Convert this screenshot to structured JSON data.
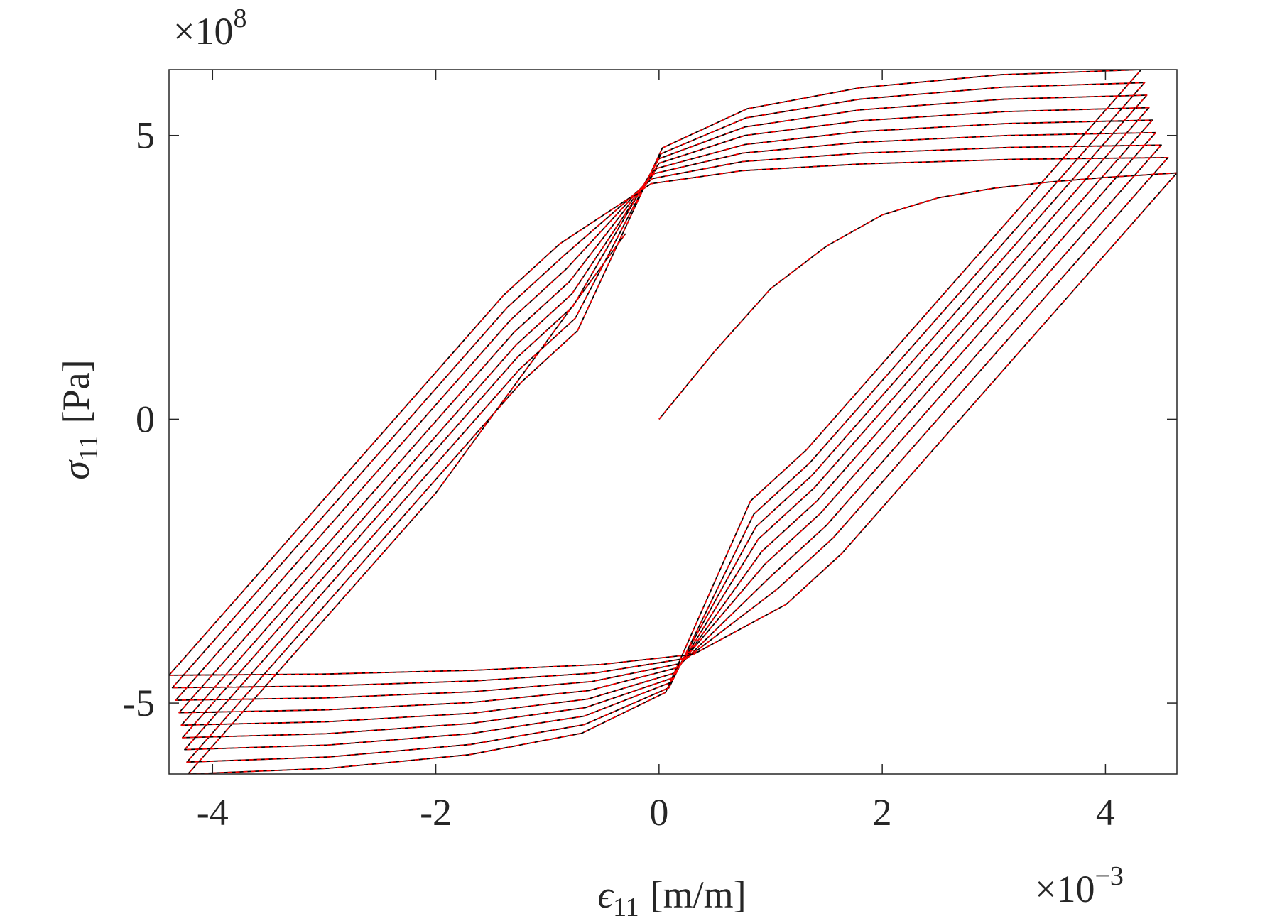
{
  "chart_data": {
    "type": "line",
    "xlabel": {
      "symbol": "ϵ",
      "subscript": "11",
      "unit": "[m/m]"
    },
    "ylabel": {
      "symbol": "σ",
      "subscript": "11",
      "unit": "[Pa]"
    },
    "x_multiplier": {
      "base": "×10",
      "exponent": "−3"
    },
    "y_multiplier": {
      "base": "×10",
      "exponent": "8"
    },
    "xlim": [
      -4.39,
      4.64
    ],
    "ylim": [
      -6.25,
      6.16
    ],
    "xticks": [
      -4,
      -2,
      0,
      2,
      4
    ],
    "yticks": [
      -5,
      0,
      5
    ],
    "grid": false,
    "series": [
      {
        "color": "#000000",
        "dash": "solid",
        "x": [
          0,
          0.5,
          1.0,
          1.5,
          2.0,
          2.5,
          3.0,
          3.5,
          4.0,
          4.64,
          1.64,
          1.14,
          0.31,
          -0.52,
          -1.63,
          -3.01,
          -4.39,
          -1.39,
          -0.89,
          -0.07,
          0.75,
          1.84,
          3.2,
          4.56,
          1.56,
          1.06,
          0.25,
          -0.57,
          -1.65,
          -3.01,
          -4.36,
          -1.36,
          -0.86,
          -0.06,
          0.75,
          1.82,
          3.16,
          4.5,
          1.5,
          1.0,
          0.2,
          -0.6,
          -1.67,
          -3.0,
          -4.33,
          -1.33,
          -0.83,
          -0.04,
          0.75,
          1.81,
          3.13,
          4.45,
          1.45,
          0.95,
          0.16,
          -0.63,
          -1.68,
          -2.99,
          -4.3,
          -1.3,
          -0.8,
          -0.02,
          0.77,
          1.81,
          3.12,
          4.42,
          1.42,
          0.92,
          0.14,
          -0.64,
          -1.68,
          -2.98,
          -4.28,
          -1.28,
          -0.78,
          0,
          0.77,
          1.81,
          3.1,
          4.39,
          1.39,
          0.89,
          0.12,
          -0.66,
          -1.69,
          -2.98,
          -4.27,
          -1.27,
          -0.77,
          0,
          0.77,
          1.8,
          3.09,
          4.37,
          1.37,
          0.87,
          0.1,
          -0.67,
          -1.69,
          -2.97,
          -4.25,
          -1.25,
          -0.75,
          0.02,
          0.78,
          1.8,
          3.08,
          4.35,
          1.35,
          0.85,
          0.09,
          -0.67,
          -1.69,
          -2.96,
          -4.23,
          -1.23,
          -0.73,
          0.03,
          0.79,
          1.8,
          3.06,
          4.32,
          1.32,
          0.82,
          0.06,
          -0.69,
          -1.7,
          -2.96,
          -4.22,
          -2.0,
          -0.3
        ],
        "values": [
          0,
          1.2,
          2.3,
          3.05,
          3.6,
          3.9,
          4.07,
          4.18,
          4.26,
          4.34,
          -2.36,
          -3.26,
          -4.14,
          -4.32,
          -4.42,
          -4.49,
          -4.51,
          2.19,
          3.09,
          4.15,
          4.38,
          4.5,
          4.58,
          4.61,
          -2.09,
          -2.99,
          -4.21,
          -4.47,
          -4.61,
          -4.7,
          -4.73,
          1.97,
          2.87,
          4.24,
          4.54,
          4.69,
          4.79,
          4.83,
          -1.87,
          -2.77,
          -4.3,
          -4.62,
          -4.8,
          -4.91,
          -4.95,
          1.75,
          2.65,
          4.33,
          4.69,
          4.88,
          5.0,
          5.05,
          -1.65,
          -2.55,
          -4.38,
          -4.78,
          -4.99,
          -5.12,
          -5.17,
          1.53,
          2.43,
          4.42,
          4.84,
          5.07,
          5.21,
          5.27,
          -1.43,
          -2.33,
          -4.47,
          -4.93,
          -5.18,
          -5.33,
          -5.39,
          1.31,
          2.21,
          4.51,
          5.0,
          5.26,
          5.42,
          5.49,
          -1.21,
          -2.11,
          -4.56,
          -5.08,
          -5.36,
          -5.54,
          -5.61,
          1.09,
          1.99,
          4.59,
          5.15,
          5.45,
          5.64,
          5.71,
          -0.99,
          -1.89,
          -4.64,
          -5.23,
          -5.54,
          -5.74,
          -5.82,
          0.88,
          1.78,
          4.68,
          5.31,
          5.64,
          5.85,
          5.93,
          -0.77,
          -1.67,
          -4.73,
          -5.38,
          -5.73,
          -5.95,
          -6.04,
          0.66,
          1.56,
          4.78,
          5.47,
          5.84,
          6.07,
          6.16,
          -0.54,
          -1.44,
          -4.81,
          -5.53,
          -5.91,
          -6.15,
          -6.25,
          -1.3,
          3.27
        ]
      },
      {
        "color": "#ff0000",
        "dash": "dashed",
        "x": [
          0,
          0.5,
          1.0,
          1.5,
          2.0,
          2.5,
          3.0,
          3.5,
          4.0,
          4.64,
          1.64,
          1.14,
          0.31,
          -0.52,
          -1.63,
          -3.01,
          -4.39,
          -1.39,
          -0.89,
          -0.07,
          0.75,
          1.84,
          3.2,
          4.56,
          1.56,
          1.06,
          0.25,
          -0.57,
          -1.65,
          -3.01,
          -4.36,
          -1.36,
          -0.86,
          -0.06,
          0.75,
          1.82,
          3.16,
          4.5,
          1.5,
          1.0,
          0.2,
          -0.6,
          -1.67,
          -3.0,
          -4.33,
          -1.33,
          -0.83,
          -0.04,
          0.75,
          1.81,
          3.13,
          4.45,
          1.45,
          0.95,
          0.16,
          -0.63,
          -1.68,
          -2.99,
          -4.3,
          -1.3,
          -0.8,
          -0.02,
          0.77,
          1.81,
          3.12,
          4.42,
          1.42,
          0.92,
          0.14,
          -0.64,
          -1.68,
          -2.98,
          -4.28,
          -1.28,
          -0.78,
          0,
          0.77,
          1.81,
          3.1,
          4.39,
          1.39,
          0.89,
          0.12,
          -0.66,
          -1.69,
          -2.98,
          -4.27,
          -1.27,
          -0.77,
          0,
          0.77,
          1.8,
          3.09,
          4.37,
          1.37,
          0.87,
          0.1,
          -0.67,
          -1.69,
          -2.97,
          -4.25,
          -1.25,
          -0.75,
          0.02,
          0.78,
          1.8,
          3.08,
          4.35,
          1.35,
          0.85,
          0.09,
          -0.67,
          -1.69,
          -2.96,
          -4.23,
          -1.23,
          -0.73,
          0.03,
          0.79,
          1.8,
          3.06,
          4.32,
          1.32,
          0.82,
          0.06,
          -0.69,
          -1.7,
          -2.96,
          -4.22,
          -2.0,
          -0.3
        ],
        "values": [
          0,
          1.2,
          2.3,
          3.05,
          3.6,
          3.9,
          4.07,
          4.18,
          4.26,
          4.34,
          -2.36,
          -3.26,
          -4.14,
          -4.32,
          -4.42,
          -4.49,
          -4.51,
          2.19,
          3.09,
          4.15,
          4.38,
          4.5,
          4.58,
          4.61,
          -2.09,
          -2.99,
          -4.21,
          -4.47,
          -4.61,
          -4.7,
          -4.73,
          1.97,
          2.87,
          4.24,
          4.54,
          4.69,
          4.79,
          4.83,
          -1.87,
          -2.77,
          -4.3,
          -4.62,
          -4.8,
          -4.91,
          -4.95,
          1.75,
          2.65,
          4.33,
          4.69,
          4.88,
          5.0,
          5.05,
          -1.65,
          -2.55,
          -4.38,
          -4.78,
          -4.99,
          -5.12,
          -5.17,
          1.53,
          2.43,
          4.42,
          4.84,
          5.07,
          5.21,
          5.27,
          -1.43,
          -2.33,
          -4.47,
          -4.93,
          -5.18,
          -5.33,
          -5.39,
          1.31,
          2.21,
          4.51,
          5.0,
          5.26,
          5.42,
          5.49,
          -1.21,
          -2.11,
          -4.56,
          -5.08,
          -5.36,
          -5.54,
          -5.61,
          1.09,
          1.99,
          4.59,
          5.15,
          5.45,
          5.64,
          5.71,
          -0.99,
          -1.89,
          -4.64,
          -5.23,
          -5.54,
          -5.74,
          -5.82,
          0.88,
          1.78,
          4.68,
          5.31,
          5.64,
          5.85,
          5.93,
          -0.77,
          -1.67,
          -4.73,
          -5.38,
          -5.73,
          -5.95,
          -6.04,
          0.66,
          1.56,
          4.78,
          5.47,
          5.84,
          6.07,
          6.16,
          -0.54,
          -1.44,
          -4.81,
          -5.53,
          -5.91,
          -6.15,
          -6.25,
          -1.3,
          3.27
        ]
      }
    ]
  }
}
